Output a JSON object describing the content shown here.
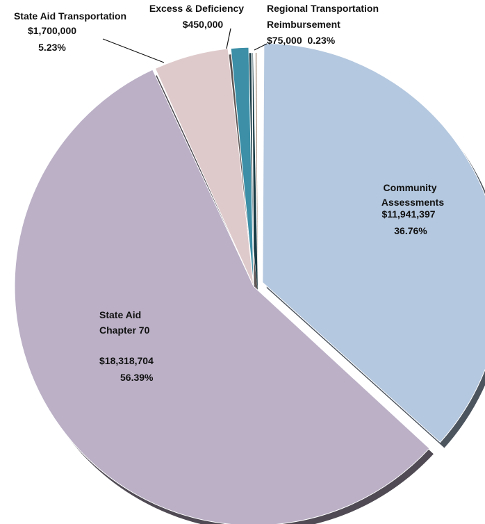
{
  "chart_data": {
    "type": "pie",
    "title": "",
    "slices": [
      {
        "label_lines": [
          "Community",
          "Assessments"
        ],
        "value": 11941397,
        "value_text": "$11,941,397",
        "percent": 36.76,
        "percent_text": "36.76%",
        "color": "#b4c8df",
        "exploded": true
      },
      {
        "label_lines": [
          "State Aid",
          "Chapter 70"
        ],
        "value": 18318704,
        "value_text": "$18,318,704",
        "percent": 56.39,
        "percent_text": "56.39%",
        "color": "#bbb0c6",
        "exploded": false
      },
      {
        "label_lines": [
          "State Aid Transportation"
        ],
        "value": 1700000,
        "value_text": "$1,700,000",
        "percent": 5.23,
        "percent_text": "5.23%",
        "color": "#dfcacb",
        "exploded": false
      },
      {
        "label_lines": [
          "Excess & Deficiency"
        ],
        "value": 450000,
        "value_text": "$450,000",
        "percent": null,
        "percent_text": "",
        "color": "#3c8fa6",
        "exploded": false
      },
      {
        "label_lines": [
          "Regional Transportation",
          "Reimbursement"
        ],
        "value": 75000,
        "value_text": "$75,000",
        "percent": 0.23,
        "percent_text": "0.23%",
        "color": "#e6883a",
        "exploded": false
      }
    ],
    "legend": "none",
    "style": "3d-exploded"
  }
}
